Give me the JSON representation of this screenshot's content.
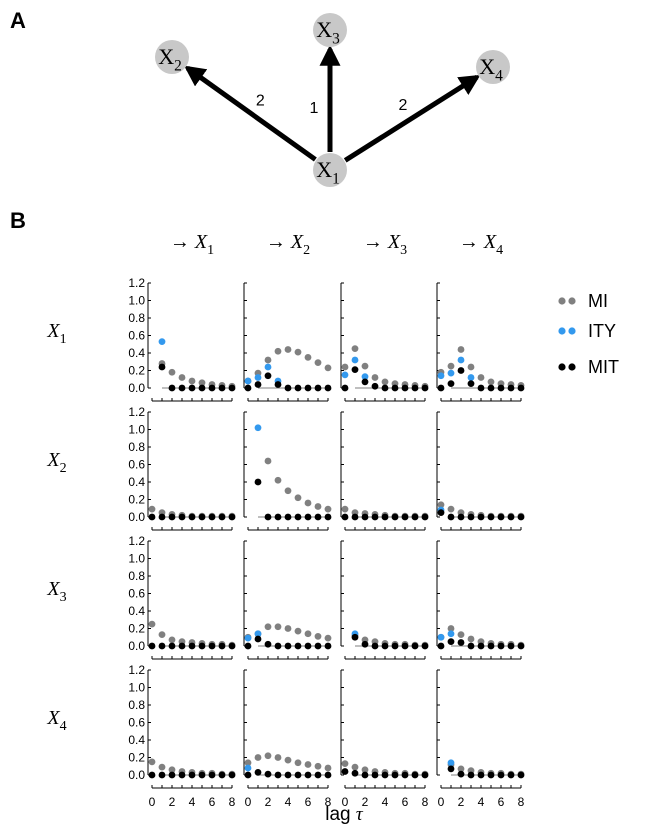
{
  "panels": {
    "a": "A",
    "b": "B"
  },
  "graph": {
    "nodes": [
      {
        "id": "X1",
        "base": "X",
        "sub": "1"
      },
      {
        "id": "X2",
        "base": "X",
        "sub": "2"
      },
      {
        "id": "X3",
        "base": "X",
        "sub": "3"
      },
      {
        "id": "X4",
        "base": "X",
        "sub": "4"
      }
    ],
    "edges": [
      {
        "from": "X1",
        "to": "X2",
        "label": "2"
      },
      {
        "from": "X1",
        "to": "X3",
        "label": "1"
      },
      {
        "from": "X1",
        "to": "X4",
        "label": "2"
      }
    ],
    "node_color": "#c8c8c8"
  },
  "column_headers": [
    {
      "arrow": "→",
      "base": "X",
      "sub": "1"
    },
    {
      "arrow": "→",
      "base": "X",
      "sub": "2"
    },
    {
      "arrow": "→",
      "base": "X",
      "sub": "3"
    },
    {
      "arrow": "→",
      "base": "X",
      "sub": "4"
    }
  ],
  "row_headers": [
    {
      "base": "X",
      "sub": "1"
    },
    {
      "base": "X",
      "sub": "2"
    },
    {
      "base": "X",
      "sub": "3"
    },
    {
      "base": "X",
      "sub": "4"
    }
  ],
  "legend": [
    {
      "label": "MI",
      "color": "#808080"
    },
    {
      "label": "ITY",
      "color": "#3399ee"
    },
    {
      "label": "MIT",
      "color": "#000000"
    }
  ],
  "chart_data": {
    "type": "scatter",
    "grid": "4x4 small multiples (row = source, column = target)",
    "xlabel": "lag τ",
    "x": [
      0,
      1,
      2,
      3,
      4,
      5,
      6,
      7,
      8
    ],
    "xticks": [
      "0",
      "2",
      "4",
      "6",
      "8"
    ],
    "ylim": [
      0,
      1.2
    ],
    "yticks": [
      "0.0",
      "0.2",
      "0.4",
      "0.6",
      "0.8",
      "1.0",
      "1.2"
    ],
    "series": [
      {
        "name": "MI",
        "color": "#808080"
      },
      {
        "name": "ITY",
        "color": "#3399ee"
      },
      {
        "name": "MIT",
        "color": "#000000"
      }
    ],
    "cells": [
      [
        {
          "MI": [
            null,
            0.28,
            0.18,
            0.12,
            0.08,
            0.06,
            0.04,
            0.03,
            0.02
          ],
          "ITY": [
            null,
            0.53,
            null,
            null,
            null,
            null,
            null,
            null,
            null
          ],
          "MIT": [
            null,
            0.24,
            0,
            0,
            0,
            0,
            0,
            0,
            0
          ]
        },
        {
          "MI": [
            0.08,
            0.17,
            0.32,
            0.42,
            0.44,
            0.41,
            0.35,
            0.29,
            0.23
          ],
          "ITY": [
            0.08,
            0.12,
            0.24,
            0.08,
            null,
            null,
            null,
            null,
            null
          ],
          "MIT": [
            0,
            0.04,
            0.14,
            0.04,
            0,
            0,
            0,
            0,
            0
          ]
        },
        {
          "MI": [
            0.24,
            0.45,
            0.25,
            0.12,
            0.07,
            0.05,
            0.04,
            0.03,
            0.02
          ],
          "ITY": [
            0.15,
            0.32,
            0.13,
            null,
            null,
            null,
            null,
            null,
            null
          ],
          "MIT": [
            0,
            0.21,
            0.07,
            0.02,
            0,
            0,
            0,
            0,
            0
          ]
        },
        {
          "MI": [
            0.18,
            0.25,
            0.44,
            0.24,
            0.12,
            0.07,
            0.05,
            0.04,
            0.03
          ],
          "ITY": [
            0.14,
            0.17,
            0.32,
            0.12,
            null,
            null,
            null,
            null,
            null
          ],
          "MIT": [
            0,
            0.05,
            0.2,
            0.05,
            0,
            0,
            0,
            0,
            0
          ]
        }
      ],
      [
        {
          "MI": [
            0.09,
            0.05,
            0.03,
            0.02,
            0.01,
            0.01,
            0.01,
            0.01,
            0.01
          ],
          "ITY": [
            null,
            null,
            null,
            null,
            null,
            null,
            null,
            null,
            null
          ],
          "MIT": [
            0,
            0,
            0,
            0,
            0,
            0,
            0,
            0,
            0
          ]
        },
        {
          "MI": [
            null,
            null,
            0.64,
            0.42,
            0.3,
            0.22,
            0.16,
            0.12,
            0.09
          ],
          "ITY": [
            null,
            1.02,
            null,
            null,
            null,
            null,
            null,
            null,
            null
          ],
          "MIT": [
            null,
            0.4,
            0,
            0,
            0,
            0,
            0,
            0,
            0
          ]
        },
        {
          "MI": [
            0.09,
            0.05,
            0.04,
            0.03,
            0.02,
            0.01,
            0.01,
            0.01,
            0.01
          ],
          "ITY": [
            null,
            null,
            null,
            null,
            null,
            null,
            null,
            null,
            null
          ],
          "MIT": [
            0,
            0,
            0,
            0,
            0,
            0,
            0,
            0,
            0
          ]
        },
        {
          "MI": [
            0.14,
            0.09,
            0.05,
            0.03,
            0.02,
            0.01,
            0.01,
            0.01,
            0.01
          ],
          "ITY": [
            0.08,
            null,
            null,
            null,
            null,
            null,
            null,
            null,
            null
          ],
          "MIT": [
            0.05,
            0,
            0,
            0,
            0,
            0,
            0,
            0,
            0
          ]
        }
      ],
      [
        {
          "MI": [
            0.25,
            0.13,
            0.07,
            0.05,
            0.04,
            0.03,
            0.02,
            0.02,
            0.01
          ],
          "ITY": [
            null,
            null,
            null,
            null,
            null,
            null,
            null,
            null,
            null
          ],
          "MIT": [
            0,
            0,
            0,
            0,
            0,
            0,
            0,
            0,
            0
          ]
        },
        {
          "MI": [
            0.1,
            0.14,
            0.22,
            0.22,
            0.2,
            0.17,
            0.14,
            0.11,
            0.09
          ],
          "ITY": [
            0.09,
            0.14,
            null,
            null,
            null,
            null,
            null,
            null,
            null
          ],
          "MIT": [
            0,
            0.08,
            0.02,
            0,
            0,
            0,
            0,
            0,
            0
          ]
        },
        {
          "MI": [
            null,
            0.12,
            0.07,
            0.05,
            0.03,
            0.02,
            0.02,
            0.01,
            0.01
          ],
          "ITY": [
            null,
            0.14,
            null,
            null,
            null,
            null,
            null,
            null,
            null
          ],
          "MIT": [
            null,
            0.1,
            0.02,
            0,
            0,
            0,
            0,
            0,
            0
          ]
        },
        {
          "MI": [
            0.1,
            0.2,
            0.13,
            0.08,
            0.05,
            0.03,
            0.02,
            0.02,
            0.01
          ],
          "ITY": [
            0.1,
            0.14,
            null,
            null,
            null,
            null,
            null,
            null,
            null
          ],
          "MIT": [
            0,
            0.05,
            0.04,
            0,
            0,
            0,
            0,
            0,
            0
          ]
        }
      ],
      [
        {
          "MI": [
            0.15,
            0.09,
            0.06,
            0.04,
            0.03,
            0.02,
            0.02,
            0.01,
            0.01
          ],
          "ITY": [
            null,
            null,
            null,
            null,
            null,
            null,
            null,
            null,
            null
          ],
          "MIT": [
            0,
            0,
            0,
            0,
            0,
            0,
            0,
            0,
            0
          ]
        },
        {
          "MI": [
            0.14,
            0.2,
            0.22,
            0.2,
            0.17,
            0.14,
            0.12,
            0.1,
            0.08
          ],
          "ITY": [
            0.08,
            null,
            null,
            null,
            null,
            null,
            null,
            null,
            null
          ],
          "MIT": [
            0,
            0.03,
            0.01,
            0,
            0,
            0,
            0,
            0,
            0
          ]
        },
        {
          "MI": [
            0.13,
            0.09,
            0.06,
            0.04,
            0.03,
            0.02,
            0.02,
            0.01,
            0.01
          ],
          "ITY": [
            null,
            null,
            null,
            null,
            null,
            null,
            null,
            null,
            null
          ],
          "MIT": [
            0.04,
            0.02,
            0,
            0,
            0,
            0,
            0,
            0,
            0
          ]
        },
        {
          "MI": [
            null,
            0.12,
            0.07,
            0.05,
            0.03,
            0.02,
            0.02,
            0.01,
            0.01
          ],
          "ITY": [
            null,
            0.14,
            null,
            null,
            null,
            null,
            null,
            null,
            null
          ],
          "MIT": [
            null,
            0.07,
            0.01,
            0,
            0,
            0,
            0,
            0,
            0
          ]
        }
      ]
    ]
  }
}
